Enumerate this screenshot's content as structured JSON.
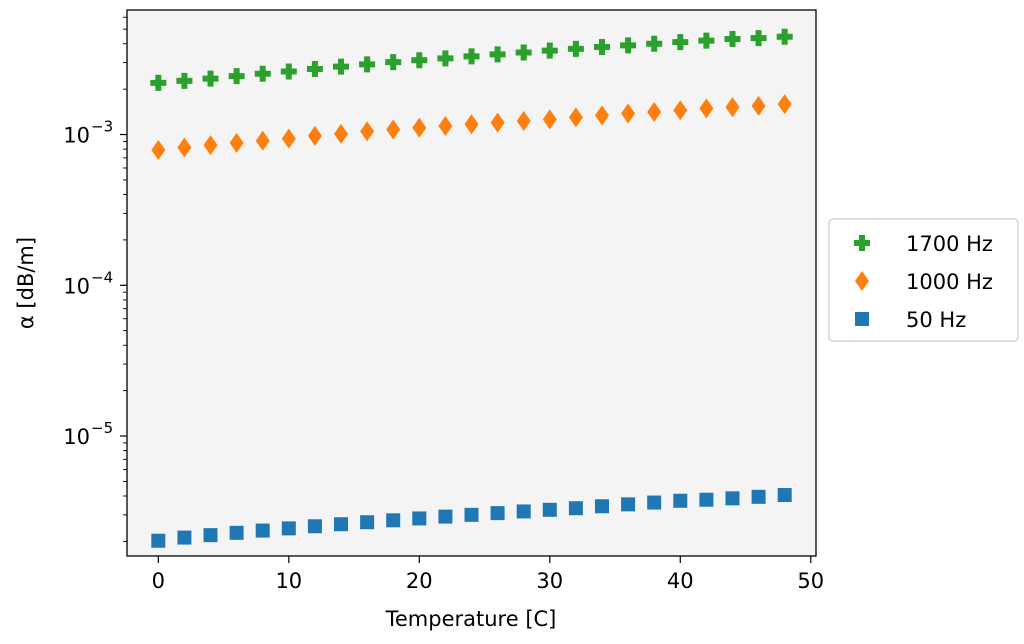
{
  "chart_data": {
    "type": "scatter",
    "title": "",
    "xlabel": "Temperature [C]",
    "ylabel": "α [dB/m]",
    "y_scale": "log",
    "xlim": [
      -2.4,
      50.4
    ],
    "ylim": [
      1.6e-06,
      0.0067
    ],
    "grid": false,
    "legend_position": "outside-right",
    "background": "#f4f4f4",
    "x_ticks": [
      0,
      10,
      20,
      30,
      40,
      50
    ],
    "y_ticks": [
      {
        "value": 0.001,
        "base": "10",
        "exp": "−3"
      },
      {
        "value": 0.0001,
        "base": "10",
        "exp": "−4"
      },
      {
        "value": 1e-05,
        "base": "10",
        "exp": "−5"
      }
    ],
    "x": [
      0,
      2,
      4,
      6,
      8,
      10,
      12,
      14,
      16,
      18,
      20,
      22,
      24,
      26,
      28,
      30,
      32,
      34,
      36,
      38,
      40,
      42,
      44,
      46,
      48
    ],
    "series": [
      {
        "name": "1700 Hz",
        "marker": "plus",
        "color": "#2ca02c",
        "values": [
          0.0022,
          0.00227,
          0.00235,
          0.00244,
          0.00253,
          0.00262,
          0.00272,
          0.00282,
          0.00292,
          0.00302,
          0.00311,
          0.0032,
          0.0033,
          0.0034,
          0.0035,
          0.0036,
          0.0037,
          0.00381,
          0.0039,
          0.004,
          0.0041,
          0.0042,
          0.0043,
          0.00436,
          0.00445
        ]
      },
      {
        "name": "1000 Hz",
        "marker": "diamond",
        "color": "#ff7f0e",
        "values": [
          0.00079,
          0.00082,
          0.00085,
          0.00088,
          0.00091,
          0.00094,
          0.00098,
          0.00101,
          0.00105,
          0.00108,
          0.00111,
          0.00114,
          0.00117,
          0.0012,
          0.00123,
          0.00126,
          0.0013,
          0.00134,
          0.00138,
          0.00141,
          0.00145,
          0.00149,
          0.00152,
          0.00155,
          0.00159
        ]
      },
      {
        "name": "50 Hz",
        "marker": "square",
        "color": "#1f77b4",
        "values": [
          2.02e-06,
          2.12e-06,
          2.2e-06,
          2.28e-06,
          2.36e-06,
          2.44e-06,
          2.52e-06,
          2.6e-06,
          2.68e-06,
          2.76e-06,
          2.84e-06,
          2.92e-06,
          3e-06,
          3.08e-06,
          3.16e-06,
          3.24e-06,
          3.32e-06,
          3.42e-06,
          3.52e-06,
          3.62e-06,
          3.72e-06,
          3.78e-06,
          3.86e-06,
          3.95e-06,
          4.06e-06
        ]
      }
    ]
  }
}
